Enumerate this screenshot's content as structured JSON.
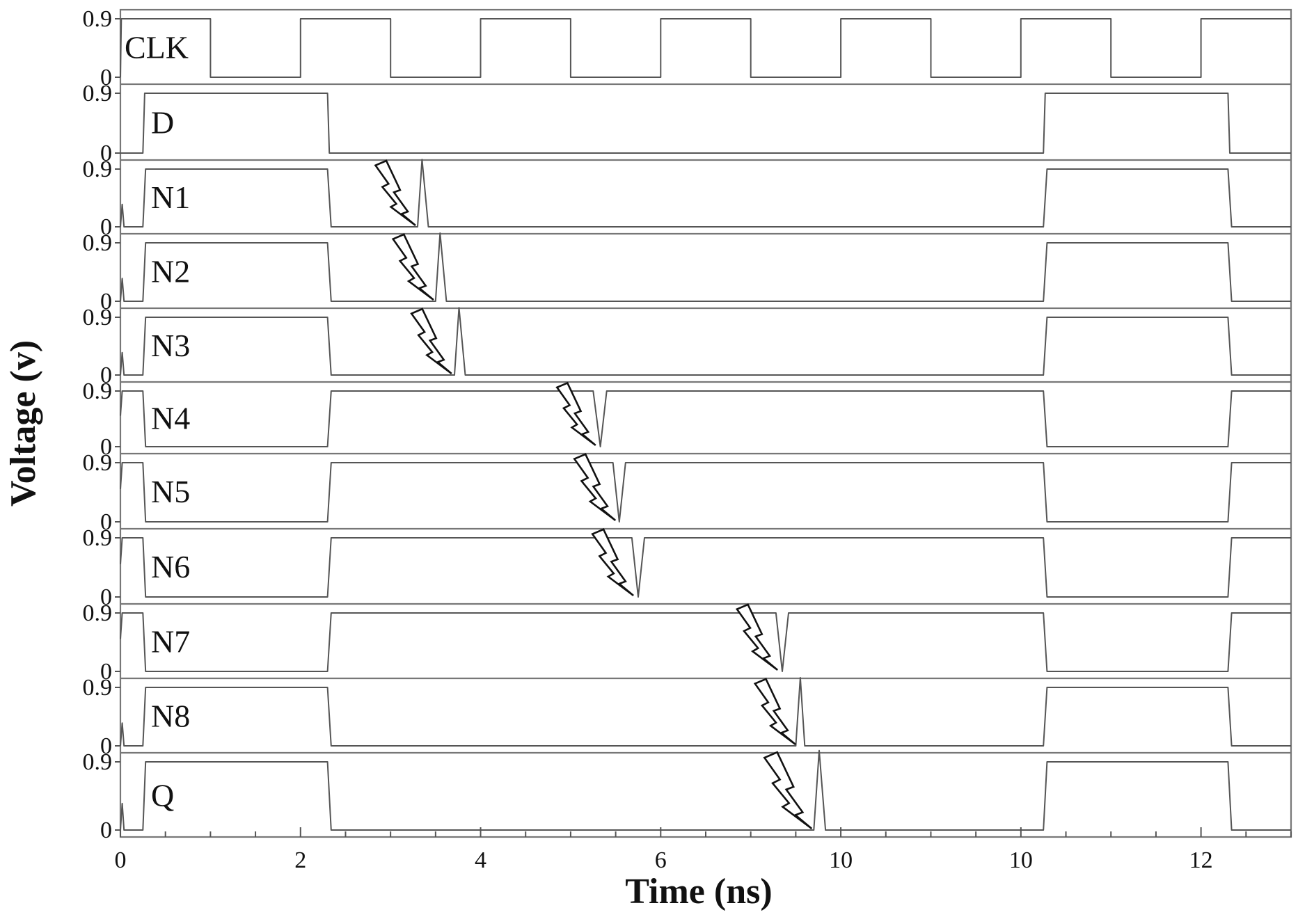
{
  "chart_data": {
    "type": "line",
    "xlabel": "Time (ns)",
    "ylabel": "Voltage (v)",
    "xlim": [
      0,
      13
    ],
    "ylim": [
      0,
      0.9
    ],
    "x_ticks": [
      "0",
      "2",
      "4",
      "6",
      "10",
      "10",
      "12"
    ],
    "y_ticks": [
      "0",
      "0.9"
    ],
    "grid": false,
    "series": [
      {
        "name": "CLK",
        "points": [
          [
            0,
            0
          ],
          [
            0.01,
            0.9
          ],
          [
            1,
            0.9
          ],
          [
            1,
            0
          ],
          [
            2,
            0
          ],
          [
            2,
            0.9
          ],
          [
            3,
            0.9
          ],
          [
            3,
            0
          ],
          [
            4,
            0
          ],
          [
            4,
            0.9
          ],
          [
            5,
            0.9
          ],
          [
            5,
            0
          ],
          [
            6,
            0
          ],
          [
            6,
            0.9
          ],
          [
            7,
            0.9
          ],
          [
            7,
            0
          ],
          [
            8,
            0
          ],
          [
            8,
            0.9
          ],
          [
            9,
            0.9
          ],
          [
            9,
            0
          ],
          [
            10,
            0
          ],
          [
            10,
            0.9
          ],
          [
            11,
            0.9
          ],
          [
            11,
            0
          ],
          [
            12,
            0
          ],
          [
            12,
            0.9
          ],
          [
            13,
            0.9
          ]
        ]
      },
      {
        "name": "D",
        "points": [
          [
            0,
            0
          ],
          [
            0.25,
            0
          ],
          [
            0.27,
            0.9
          ],
          [
            2.3,
            0.9
          ],
          [
            2.32,
            0
          ],
          [
            10.25,
            0
          ],
          [
            10.27,
            0.9
          ],
          [
            12.3,
            0.9
          ],
          [
            12.32,
            0
          ],
          [
            13,
            0
          ]
        ]
      },
      {
        "name": "N1",
        "points": [
          [
            0,
            0
          ],
          [
            0.02,
            0.35
          ],
          [
            0.04,
            0
          ],
          [
            0.25,
            0
          ],
          [
            0.28,
            0.9
          ],
          [
            2.3,
            0.9
          ],
          [
            2.34,
            0
          ],
          [
            3.3,
            0
          ],
          [
            3.35,
            1.05
          ],
          [
            3.42,
            0
          ],
          [
            10.25,
            0
          ],
          [
            10.29,
            0.9
          ],
          [
            12.3,
            0.9
          ],
          [
            12.34,
            0
          ],
          [
            13,
            0
          ]
        ]
      },
      {
        "name": "N2",
        "points": [
          [
            0,
            0
          ],
          [
            0.02,
            0.35
          ],
          [
            0.04,
            0
          ],
          [
            0.25,
            0
          ],
          [
            0.28,
            0.9
          ],
          [
            2.3,
            0.9
          ],
          [
            2.34,
            0
          ],
          [
            3.5,
            0
          ],
          [
            3.55,
            1.05
          ],
          [
            3.62,
            0
          ],
          [
            10.25,
            0
          ],
          [
            10.29,
            0.9
          ],
          [
            12.3,
            0.9
          ],
          [
            12.34,
            0
          ],
          [
            13,
            0
          ]
        ]
      },
      {
        "name": "N3",
        "points": [
          [
            0,
            0
          ],
          [
            0.02,
            0.35
          ],
          [
            0.04,
            0
          ],
          [
            0.25,
            0
          ],
          [
            0.28,
            0.9
          ],
          [
            2.3,
            0.9
          ],
          [
            2.34,
            0
          ],
          [
            3.71,
            0
          ],
          [
            3.76,
            1.05
          ],
          [
            3.83,
            0
          ],
          [
            10.25,
            0
          ],
          [
            10.29,
            0.9
          ],
          [
            12.3,
            0.9
          ],
          [
            12.34,
            0
          ],
          [
            13,
            0
          ]
        ]
      },
      {
        "name": "N4",
        "points": [
          [
            0,
            0.5
          ],
          [
            0.02,
            0.9
          ],
          [
            0.25,
            0.9
          ],
          [
            0.28,
            0
          ],
          [
            2.3,
            0
          ],
          [
            2.34,
            0.9
          ],
          [
            5.25,
            0.9
          ],
          [
            5.33,
            0
          ],
          [
            5.4,
            0.9
          ],
          [
            10.25,
            0.9
          ],
          [
            10.29,
            0
          ],
          [
            12.3,
            0
          ],
          [
            12.34,
            0.9
          ],
          [
            13,
            0.9
          ]
        ]
      },
      {
        "name": "N5",
        "points": [
          [
            0,
            0.5
          ],
          [
            0.02,
            0.9
          ],
          [
            0.25,
            0.9
          ],
          [
            0.28,
            0
          ],
          [
            2.3,
            0
          ],
          [
            2.34,
            0.9
          ],
          [
            5.47,
            0.9
          ],
          [
            5.54,
            0
          ],
          [
            5.61,
            0.9
          ],
          [
            10.25,
            0.9
          ],
          [
            10.29,
            0
          ],
          [
            12.3,
            0
          ],
          [
            12.34,
            0.9
          ],
          [
            13,
            0.9
          ]
        ]
      },
      {
        "name": "N6",
        "points": [
          [
            0,
            0.5
          ],
          [
            0.02,
            0.9
          ],
          [
            0.25,
            0.9
          ],
          [
            0.28,
            0
          ],
          [
            2.3,
            0
          ],
          [
            2.34,
            0.9
          ],
          [
            5.68,
            0.9
          ],
          [
            5.75,
            0
          ],
          [
            5.82,
            0.9
          ],
          [
            10.25,
            0.9
          ],
          [
            10.29,
            0
          ],
          [
            12.3,
            0
          ],
          [
            12.34,
            0.9
          ],
          [
            13,
            0.9
          ]
        ]
      },
      {
        "name": "N7",
        "points": [
          [
            0,
            0.5
          ],
          [
            0.02,
            0.9
          ],
          [
            0.25,
            0.9
          ],
          [
            0.28,
            0
          ],
          [
            2.3,
            0
          ],
          [
            2.34,
            0.9
          ],
          [
            7.28,
            0.9
          ],
          [
            7.35,
            0
          ],
          [
            7.42,
            0.9
          ],
          [
            10.25,
            0.9
          ],
          [
            10.29,
            0
          ],
          [
            12.3,
            0
          ],
          [
            12.34,
            0.9
          ],
          [
            13,
            0.9
          ]
        ]
      },
      {
        "name": "N8",
        "points": [
          [
            0,
            0
          ],
          [
            0.02,
            0.35
          ],
          [
            0.04,
            0
          ],
          [
            0.25,
            0
          ],
          [
            0.28,
            0.9
          ],
          [
            2.3,
            0.9
          ],
          [
            2.34,
            0
          ],
          [
            7.5,
            0
          ],
          [
            7.55,
            1.05
          ],
          [
            7.6,
            0
          ],
          [
            10.25,
            0
          ],
          [
            10.29,
            0.9
          ],
          [
            12.3,
            0.9
          ],
          [
            12.34,
            0
          ],
          [
            13,
            0
          ]
        ]
      },
      {
        "name": "Q",
        "points": [
          [
            0,
            0
          ],
          [
            0.02,
            0.35
          ],
          [
            0.04,
            0
          ],
          [
            0.25,
            0
          ],
          [
            0.28,
            0.9
          ],
          [
            2.3,
            0.9
          ],
          [
            2.34,
            0
          ],
          [
            7.7,
            0
          ],
          [
            7.76,
            1.05
          ],
          [
            7.83,
            0
          ],
          [
            10.25,
            0
          ],
          [
            10.29,
            0.9
          ],
          [
            12.3,
            0.9
          ],
          [
            12.34,
            0
          ],
          [
            13,
            0
          ]
        ]
      }
    ],
    "strike_markers": [
      {
        "series": "N1",
        "x": 3.2
      },
      {
        "series": "N2",
        "x": 3.4
      },
      {
        "series": "N3",
        "x": 3.6
      },
      {
        "series": "N4",
        "x": 5.2
      },
      {
        "series": "N5",
        "x": 5.42
      },
      {
        "series": "N6",
        "x": 5.62
      },
      {
        "series": "N7",
        "x": 7.22
      },
      {
        "series": "N8",
        "x": 7.42
      },
      {
        "series": "Q",
        "x": 7.6
      }
    ]
  }
}
